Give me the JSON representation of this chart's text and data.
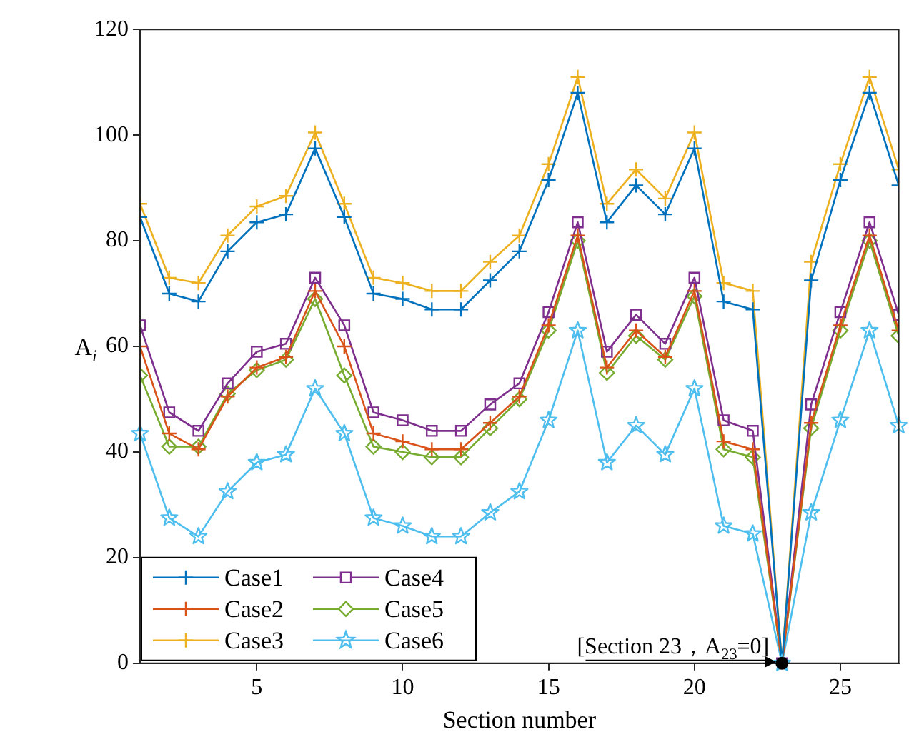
{
  "chart_data": {
    "type": "line",
    "xlabel": "Section number",
    "ylabel": "A$_{i}$",
    "x": [
      1,
      2,
      3,
      4,
      5,
      6,
      7,
      8,
      9,
      10,
      11,
      12,
      13,
      14,
      15,
      16,
      17,
      18,
      19,
      20,
      21,
      22,
      23,
      24,
      25,
      26,
      27
    ],
    "xlim": [
      1,
      27
    ],
    "xticks": [
      5,
      10,
      15,
      20,
      25
    ],
    "ylim": [
      0,
      120
    ],
    "yticks": [
      0,
      20,
      40,
      60,
      80,
      100,
      120
    ],
    "grid": false,
    "legend": "bottom left",
    "series": [
      {
        "name": "Case1",
        "color": "#0072bd",
        "marker": "cross",
        "values": [
          84.5,
          70,
          68.5,
          78,
          83.5,
          85,
          97.5,
          84.5,
          70,
          69,
          67,
          67,
          72.5,
          78,
          91.5,
          108,
          83.5,
          90.5,
          85,
          97.5,
          68.5,
          67,
          0,
          72.5,
          91.5,
          108,
          90.5
        ]
      },
      {
        "name": "Case2",
        "color": "#d95319",
        "marker": "cross",
        "values": [
          60,
          43.5,
          40.5,
          50.5,
          56,
          58,
          70.5,
          60,
          43.5,
          42,
          40.5,
          40.5,
          45.5,
          50.5,
          64,
          81,
          56,
          63,
          58,
          70.5,
          42,
          40.5,
          0,
          45.5,
          64,
          81,
          63
        ]
      },
      {
        "name": "Case3",
        "color": "#edb120",
        "marker": "cross",
        "values": [
          87,
          73,
          72,
          81,
          86.5,
          88.5,
          100.5,
          87,
          73,
          72,
          70.5,
          70.5,
          76,
          81,
          94.5,
          111,
          87,
          93.5,
          88,
          100.5,
          72,
          70.5,
          0,
          76,
          94.5,
          111,
          93.5
        ]
      },
      {
        "name": "Case4",
        "color": "#7e2f8e",
        "marker": "square",
        "values": [
          64,
          47.5,
          44,
          53,
          59,
          60.5,
          73,
          64,
          47.5,
          46,
          44,
          44,
          49,
          53,
          66.5,
          83.5,
          59,
          66,
          60.5,
          73,
          46,
          44,
          0,
          49,
          66.5,
          83.5,
          66
        ]
      },
      {
        "name": "Case5",
        "color": "#77ac30",
        "marker": "diamond",
        "values": [
          54.5,
          41,
          41,
          51,
          55.5,
          57.5,
          69,
          54.5,
          41,
          40,
          39,
          39,
          44.5,
          50,
          63,
          80,
          55,
          62,
          57.5,
          69.5,
          40.5,
          39,
          0,
          44.5,
          63,
          80,
          62
        ]
      },
      {
        "name": "Case6",
        "color": "#4dbeee",
        "marker": "star",
        "values": [
          43.5,
          27.5,
          24,
          32.5,
          38,
          39.5,
          52,
          43.5,
          27.5,
          26,
          24,
          24,
          28.5,
          32.5,
          46,
          63,
          38,
          45,
          39.5,
          52,
          26,
          24.5,
          0,
          28.5,
          46,
          63,
          45
        ]
      }
    ],
    "annotations": [
      {
        "text": "[Section 23，A$_{23}$=0]",
        "x": 23,
        "y": 0
      }
    ]
  }
}
